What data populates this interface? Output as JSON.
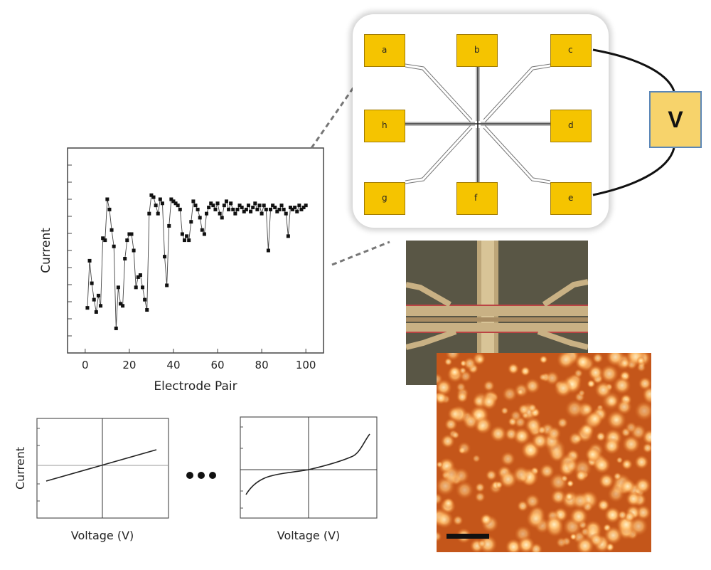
{
  "scatter_plot": {
    "y_label": "Current",
    "x_label": "Electrode Pair",
    "x_ticks": [
      "0",
      "20",
      "40",
      "60",
      "80",
      "100"
    ]
  },
  "chip_diagram": {
    "pads": [
      "a",
      "b",
      "c",
      "h",
      "d",
      "g",
      "f",
      "e"
    ],
    "voltmeter_label": "V",
    "pad_color": "#f5c400",
    "voltmeter_color": "#f7d36b"
  },
  "iv_plot_linear": {
    "y_label": "Current",
    "x_label": "Voltage (V)"
  },
  "iv_plot_nonlinear": {
    "x_label": "Voltage (V)"
  },
  "afm_image": {
    "colors": [
      "#8a2d00",
      "#d9661a",
      "#ffcc80"
    ]
  },
  "chart_data": {
    "type": "scatter",
    "xlabel": "Electrode Pair",
    "ylabel": "Current",
    "xlim": [
      -8,
      108
    ],
    "x_ticks": [
      0,
      20,
      40,
      60,
      80,
      100
    ],
    "ylim": [
      0,
      1
    ],
    "series": [
      {
        "x": [
          1,
          2,
          3,
          4,
          5,
          6,
          7,
          8,
          9,
          10,
          11,
          12,
          13,
          14,
          15,
          16,
          17,
          18,
          19,
          20,
          21,
          22,
          23,
          24,
          25,
          26,
          27,
          28,
          29,
          30,
          31,
          32,
          33,
          34,
          35,
          36,
          37,
          38,
          39,
          40,
          41,
          42,
          43,
          44,
          45,
          46,
          47,
          48,
          49,
          50,
          51,
          52,
          53,
          54,
          55,
          56,
          57,
          58,
          59,
          60,
          61,
          62,
          63,
          64,
          65,
          66,
          67,
          68,
          69,
          70,
          71,
          72,
          73,
          74,
          75,
          76,
          77,
          78,
          79,
          80,
          81,
          82,
          83,
          84,
          85,
          86,
          87,
          88,
          89,
          90,
          91,
          92,
          93,
          94,
          95,
          96,
          97,
          98,
          99,
          100
        ],
        "y": [
          0.22,
          0.45,
          0.34,
          0.26,
          0.2,
          0.28,
          0.23,
          0.56,
          0.55,
          0.75,
          0.7,
          0.6,
          0.52,
          0.12,
          0.32,
          0.24,
          0.23,
          0.46,
          0.55,
          0.58,
          0.58,
          0.5,
          0.32,
          0.37,
          0.38,
          0.32,
          0.26,
          0.21,
          0.68,
          0.77,
          0.76,
          0.72,
          0.68,
          0.75,
          0.73,
          0.47,
          0.33,
          0.62,
          0.75,
          0.74,
          0.73,
          0.72,
          0.7,
          0.58,
          0.55,
          0.57,
          0.55,
          0.64,
          0.74,
          0.72,
          0.7,
          0.66,
          0.6,
          0.58,
          0.68,
          0.71,
          0.73,
          0.72,
          0.7,
          0.73,
          0.68,
          0.66,
          0.72,
          0.74,
          0.7,
          0.73,
          0.7,
          0.68,
          0.7,
          0.72,
          0.71,
          0.69,
          0.7,
          0.72,
          0.69,
          0.71,
          0.73,
          0.7,
          0.72,
          0.68,
          0.72,
          0.7,
          0.5,
          0.7,
          0.72,
          0.71,
          0.69,
          0.7,
          0.72,
          0.7,
          0.68,
          0.57,
          0.71,
          0.7,
          0.71,
          0.69,
          0.72,
          0.7,
          0.71,
          0.72
        ]
      }
    ]
  }
}
